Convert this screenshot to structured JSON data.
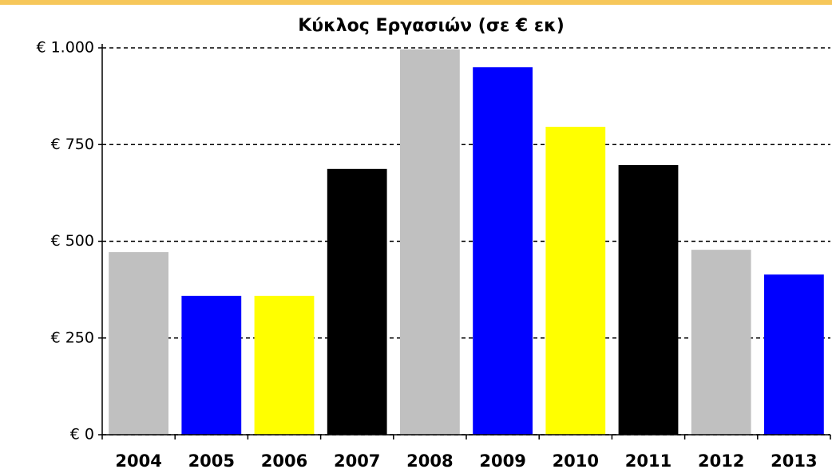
{
  "chart_data": {
    "type": "bar",
    "title": "Κύκλος Εργασιών (σε € εκ)",
    "categories": [
      "2004",
      "2005",
      "2006",
      "2007",
      "2008",
      "2009",
      "2010",
      "2011",
      "2012",
      "2013"
    ],
    "values": [
      472,
      359,
      359,
      687,
      996,
      950,
      796,
      697,
      478,
      414
    ],
    "colors": [
      "#c0c0c0",
      "#0000ff",
      "#ffff00",
      "#000000",
      "#c0c0c0",
      "#0000ff",
      "#ffff00",
      "#000000",
      "#c0c0c0",
      "#0000ff"
    ],
    "ylim": [
      0,
      1000
    ],
    "yticks": [
      {
        "value": 0,
        "label": "€ 0"
      },
      {
        "value": 250,
        "label": "€ 250"
      },
      {
        "value": 500,
        "label": "€ 500"
      },
      {
        "value": 750,
        "label": "€ 750"
      },
      {
        "value": 1000,
        "label": "€ 1.000"
      }
    ],
    "grid": true
  }
}
